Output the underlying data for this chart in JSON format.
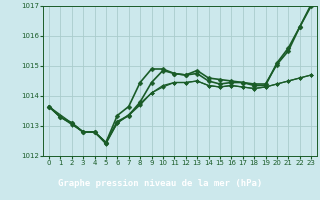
{
  "title": "Graphe pression niveau de la mer (hPa)",
  "bg_color": "#cce8ec",
  "plot_bg_color": "#cce8ec",
  "label_bg_color": "#2a6e3a",
  "label_text_color": "#ffffff",
  "grid_color": "#aacccc",
  "line_color": "#1a5c28",
  "xlim": [
    -0.5,
    23.5
  ],
  "ylim": [
    1012,
    1017
  ],
  "yticks": [
    1012,
    1013,
    1014,
    1015,
    1016,
    1017
  ],
  "xticks": [
    0,
    1,
    2,
    3,
    4,
    5,
    6,
    7,
    8,
    9,
    10,
    11,
    12,
    13,
    14,
    15,
    16,
    17,
    18,
    19,
    20,
    21,
    22,
    23
  ],
  "series": [
    {
      "x": [
        0,
        1,
        2,
        3,
        4,
        5,
        6,
        7,
        8,
        9,
        10,
        11,
        12,
        13,
        14,
        15,
        16,
        17,
        18,
        19,
        20,
        21,
        22,
        23
      ],
      "y": [
        1013.65,
        1013.3,
        1013.1,
        1012.8,
        1012.8,
        1012.45,
        1013.15,
        1013.35,
        1013.8,
        1014.45,
        1014.85,
        1014.75,
        1014.7,
        1014.85,
        1014.6,
        1014.55,
        1014.5,
        1014.45,
        1014.4,
        1014.4,
        1015.05,
        1015.5,
        1016.3,
        1017.0
      ],
      "marker": "D",
      "markersize": 2.5,
      "linewidth": 1.2
    },
    {
      "x": [
        0,
        1,
        2,
        3,
        4,
        5,
        6,
        7,
        8,
        9,
        10,
        11,
        12,
        13,
        14,
        15,
        16,
        17,
        18,
        19,
        20,
        21,
        22,
        23
      ],
      "y": [
        1013.65,
        1013.3,
        1013.1,
        1012.8,
        1012.8,
        1012.45,
        1013.35,
        1013.65,
        1014.45,
        1014.9,
        1014.9,
        1014.75,
        1014.7,
        1014.75,
        1014.5,
        1014.4,
        1014.45,
        1014.45,
        1014.35,
        1014.35,
        1015.1,
        1015.6,
        1016.3,
        1017.05
      ],
      "marker": "D",
      "markersize": 2.5,
      "linewidth": 1.2
    },
    {
      "x": [
        0,
        1,
        2,
        3,
        4,
        5,
        6,
        7,
        8,
        9,
        10,
        11,
        12,
        13,
        14,
        15,
        16,
        17,
        18,
        19,
        20,
        21,
        22,
        23
      ],
      "y": [
        1013.65,
        1013.3,
        1013.05,
        1012.8,
        1012.8,
        1012.4,
        1013.1,
        1013.38,
        1013.75,
        1014.1,
        1014.35,
        1014.45,
        1014.45,
        1014.5,
        1014.35,
        1014.3,
        1014.35,
        1014.3,
        1014.25,
        1014.3,
        1014.4,
        1014.5,
        1014.6,
        1014.7
      ],
      "marker": "D",
      "markersize": 2.0,
      "linewidth": 0.9
    },
    {
      "x": [
        0,
        2,
        3,
        4,
        5,
        6,
        7,
        8,
        9,
        10,
        11,
        12,
        13,
        14,
        15,
        16,
        17,
        18,
        19,
        20,
        21,
        22,
        23
      ],
      "y": [
        1013.65,
        1013.1,
        1012.8,
        1012.8,
        1012.45,
        1013.1,
        1013.35,
        1013.7,
        1014.1,
        1014.3,
        1014.45,
        1014.45,
        1014.5,
        1014.35,
        1014.3,
        1014.35,
        1014.3,
        1014.25,
        1014.3,
        1014.4,
        1014.5,
        1014.6,
        1014.7
      ],
      "marker": "D",
      "markersize": 2.0,
      "linewidth": 0.9
    }
  ]
}
